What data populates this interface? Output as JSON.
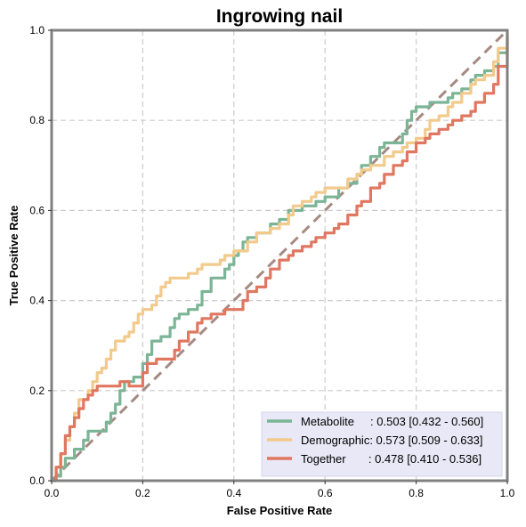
{
  "chart_data": {
    "type": "line",
    "title": "Ingrowing nail",
    "xlabel": "False Positive Rate",
    "ylabel": "True Positive Rate",
    "xlim": [
      0,
      1
    ],
    "ylim": [
      0,
      1
    ],
    "xticks": [
      "0.0",
      "0.2",
      "0.4",
      "0.6",
      "0.8",
      "1.0"
    ],
    "yticks": [
      "0.0",
      "0.2",
      "0.4",
      "0.6",
      "0.8",
      "1.0"
    ],
    "grid": true,
    "legend_position": "lower-right",
    "diagonal": {
      "x": [
        0,
        1
      ],
      "y": [
        0,
        1
      ],
      "color": "#a58a82",
      "style": "dashed"
    },
    "series": [
      {
        "name": "Metabolite",
        "legend_label": "Metabolite     : 0.503 [0.432 - 0.560]",
        "color": "#7cb496",
        "x": [
          0,
          0.01,
          0.02,
          0.03,
          0.05,
          0.07,
          0.08,
          0.09,
          0.1,
          0.12,
          0.13,
          0.14,
          0.15,
          0.16,
          0.17,
          0.18,
          0.2,
          0.21,
          0.22,
          0.24,
          0.26,
          0.27,
          0.28,
          0.29,
          0.3,
          0.31,
          0.32,
          0.33,
          0.35,
          0.37,
          0.38,
          0.39,
          0.4,
          0.41,
          0.42,
          0.43,
          0.45,
          0.47,
          0.48,
          0.5,
          0.52,
          0.53,
          0.55,
          0.57,
          0.58,
          0.6,
          0.62,
          0.63,
          0.65,
          0.67,
          0.68,
          0.7,
          0.72,
          0.73,
          0.75,
          0.77,
          0.78,
          0.79,
          0.8,
          0.82,
          0.83,
          0.85,
          0.87,
          0.88,
          0.9,
          0.92,
          0.93,
          0.95,
          0.97,
          0.98,
          1.0
        ],
        "y": [
          0,
          0.01,
          0.03,
          0.05,
          0.07,
          0.09,
          0.11,
          0.11,
          0.11,
          0.13,
          0.15,
          0.17,
          0.2,
          0.22,
          0.22,
          0.23,
          0.26,
          0.28,
          0.31,
          0.32,
          0.34,
          0.36,
          0.37,
          0.37,
          0.38,
          0.38,
          0.39,
          0.42,
          0.45,
          0.45,
          0.47,
          0.48,
          0.5,
          0.51,
          0.53,
          0.54,
          0.55,
          0.55,
          0.57,
          0.58,
          0.6,
          0.6,
          0.61,
          0.61,
          0.62,
          0.63,
          0.63,
          0.65,
          0.66,
          0.68,
          0.7,
          0.72,
          0.74,
          0.75,
          0.75,
          0.77,
          0.8,
          0.82,
          0.83,
          0.83,
          0.84,
          0.84,
          0.85,
          0.86,
          0.87,
          0.89,
          0.9,
          0.91,
          0.92,
          0.95,
          0.99
        ]
      },
      {
        "name": "Demographic",
        "legend_label": "Demographic: 0.573 [0.509 - 0.633]",
        "color": "#f2ca8c",
        "x": [
          0,
          0.01,
          0.02,
          0.03,
          0.04,
          0.05,
          0.06,
          0.07,
          0.08,
          0.09,
          0.1,
          0.11,
          0.12,
          0.13,
          0.14,
          0.15,
          0.16,
          0.17,
          0.18,
          0.19,
          0.2,
          0.21,
          0.22,
          0.23,
          0.24,
          0.25,
          0.26,
          0.27,
          0.28,
          0.3,
          0.32,
          0.33,
          0.35,
          0.37,
          0.38,
          0.4,
          0.42,
          0.43,
          0.45,
          0.47,
          0.48,
          0.5,
          0.52,
          0.53,
          0.55,
          0.57,
          0.58,
          0.6,
          0.62,
          0.63,
          0.65,
          0.67,
          0.68,
          0.7,
          0.72,
          0.73,
          0.75,
          0.77,
          0.78,
          0.8,
          0.82,
          0.83,
          0.85,
          0.87,
          0.88,
          0.9,
          0.92,
          0.93,
          0.95,
          0.97,
          0.98,
          1.0
        ],
        "y": [
          0,
          0.03,
          0.06,
          0.09,
          0.12,
          0.15,
          0.18,
          0.18,
          0.2,
          0.22,
          0.24,
          0.25,
          0.27,
          0.29,
          0.31,
          0.31,
          0.32,
          0.33,
          0.35,
          0.37,
          0.38,
          0.38,
          0.39,
          0.41,
          0.43,
          0.44,
          0.45,
          0.45,
          0.45,
          0.46,
          0.47,
          0.48,
          0.48,
          0.49,
          0.5,
          0.51,
          0.51,
          0.53,
          0.55,
          0.55,
          0.56,
          0.57,
          0.59,
          0.61,
          0.62,
          0.63,
          0.64,
          0.65,
          0.65,
          0.65,
          0.67,
          0.68,
          0.69,
          0.7,
          0.7,
          0.72,
          0.73,
          0.74,
          0.75,
          0.76,
          0.78,
          0.8,
          0.81,
          0.83,
          0.84,
          0.86,
          0.88,
          0.89,
          0.9,
          0.93,
          0.96,
          1.0
        ]
      },
      {
        "name": "Together",
        "legend_label": "Together       : 0.478 [0.410 - 0.536]",
        "color": "#e07760",
        "x": [
          0,
          0.01,
          0.02,
          0.03,
          0.04,
          0.05,
          0.06,
          0.07,
          0.08,
          0.09,
          0.1,
          0.12,
          0.13,
          0.15,
          0.17,
          0.18,
          0.2,
          0.21,
          0.22,
          0.23,
          0.25,
          0.27,
          0.28,
          0.3,
          0.32,
          0.33,
          0.35,
          0.37,
          0.38,
          0.4,
          0.42,
          0.43,
          0.45,
          0.47,
          0.48,
          0.5,
          0.52,
          0.53,
          0.55,
          0.57,
          0.58,
          0.6,
          0.62,
          0.63,
          0.65,
          0.67,
          0.68,
          0.7,
          0.72,
          0.73,
          0.75,
          0.77,
          0.78,
          0.8,
          0.82,
          0.83,
          0.85,
          0.87,
          0.88,
          0.9,
          0.92,
          0.93,
          0.95,
          0.97,
          0.98,
          1.0
        ],
        "y": [
          0,
          0.03,
          0.06,
          0.1,
          0.12,
          0.14,
          0.16,
          0.18,
          0.19,
          0.2,
          0.21,
          0.21,
          0.21,
          0.22,
          0.21,
          0.21,
          0.24,
          0.26,
          0.26,
          0.27,
          0.27,
          0.29,
          0.31,
          0.33,
          0.35,
          0.36,
          0.37,
          0.37,
          0.38,
          0.38,
          0.4,
          0.42,
          0.43,
          0.45,
          0.47,
          0.49,
          0.5,
          0.51,
          0.52,
          0.53,
          0.54,
          0.55,
          0.56,
          0.57,
          0.59,
          0.61,
          0.62,
          0.65,
          0.66,
          0.68,
          0.7,
          0.71,
          0.73,
          0.75,
          0.76,
          0.77,
          0.78,
          0.79,
          0.8,
          0.81,
          0.82,
          0.84,
          0.86,
          0.88,
          0.92,
          0.98
        ]
      }
    ]
  }
}
